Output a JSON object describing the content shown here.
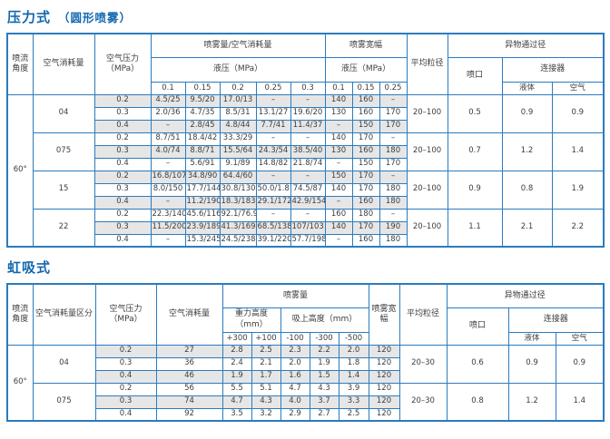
{
  "table1": {
    "title": "压力式",
    "subtitle": "（圆形喷雾）",
    "headers": {
      "spray_angle": "喷流角度",
      "air_consumption": "空气消耗量",
      "air_pressure": "空气压力（MPa）",
      "spray_air": "喷雾量/空气消耗量",
      "hyd_pressure": "液压（MPa）",
      "spray_air_cols": [
        "0.1",
        "0.15",
        "0.2",
        "0.25",
        "0.3"
      ],
      "spray_width": "喷雾宽幅",
      "spray_width_cols": [
        "0.1",
        "0.15",
        "0.25"
      ],
      "avg_particle": "平均粒径",
      "foreign_pass": "异物通过径",
      "nozzle": "喷口",
      "connector": "连接器",
      "liquid": "液体",
      "air": "空气"
    },
    "angle": "60°",
    "groups": [
      {
        "size": "04",
        "avg_particle": "20–100",
        "nozzle": "0.5",
        "liquid": "0.9",
        "air": "0.9",
        "rows": [
          {
            "pressure": "0.2",
            "spray_air": [
              "4.5/25",
              "9.5/20",
              "17.0/13",
              "–",
              "–"
            ],
            "width": [
              "140",
              "160",
              "–"
            ]
          },
          {
            "pressure": "0.3",
            "spray_air": [
              "2.0/36",
              "4.7/35",
              "8.5/31",
              "13.1/27",
              "19.6/20"
            ],
            "width": [
              "130",
              "160",
              "170"
            ]
          },
          {
            "pressure": "0.4",
            "spray_air": [
              "–",
              "2.8/45",
              "4.8/44",
              "7.7/41",
              "11.4/37"
            ],
            "width": [
              "–",
              "150",
              "170"
            ]
          }
        ]
      },
      {
        "size": "075",
        "avg_particle": "20–100",
        "nozzle": "0.7",
        "liquid": "1.2",
        "air": "1.4",
        "rows": [
          {
            "pressure": "0.2",
            "spray_air": [
              "8.7/51",
              "18.4/42",
              "33.3/29",
              "–",
              "–"
            ],
            "width": [
              "140",
              "170",
              "–"
            ]
          },
          {
            "pressure": "0.3",
            "spray_air": [
              "4.0/74",
              "8.8/71",
              "15.5/64",
              "24.3/54",
              "38.5/40"
            ],
            "width": [
              "130",
              "160",
              "180"
            ]
          },
          {
            "pressure": "0.4",
            "spray_air": [
              "–",
              "5.6/91",
              "9.1/89",
              "14.8/82",
              "21.8/74"
            ],
            "width": [
              "–",
              "150",
              "170"
            ]
          }
        ]
      },
      {
        "size": "15",
        "avg_particle": "20–100",
        "nozzle": "0.9",
        "liquid": "0.8",
        "air": "1.9",
        "rows": [
          {
            "pressure": "0.2",
            "spray_air": [
              "16.8/107",
              "34.8/90",
              "64.4/60",
              "–",
              "–"
            ],
            "width": [
              "150",
              "170",
              "–"
            ]
          },
          {
            "pressure": "0.3",
            "spray_air": [
              "8.0/150",
              "17.7/144",
              "30.8/130",
              "50.0/1.8",
              "74.5/87"
            ],
            "width": [
              "140",
              "170",
              "180"
            ]
          },
          {
            "pressure": "0.4",
            "spray_air": [
              "–",
              "11.2/190",
              "18.3/183",
              "29.1/172",
              "42.9/154"
            ],
            "width": [
              "–",
              "160",
              "180"
            ]
          }
        ]
      },
      {
        "size": "22",
        "avg_particle": "20–100",
        "nozzle": "1.1",
        "liquid": "2.1",
        "air": "2.2",
        "rows": [
          {
            "pressure": "0.2",
            "spray_air": [
              "22.3/140",
              "45.6/116",
              "92.1/76.9",
              "–",
              "–"
            ],
            "width": [
              "160",
              "180",
              "–"
            ]
          },
          {
            "pressure": "0.3",
            "spray_air": [
              "11.5/200",
              "23.9/189",
              "41.3/169",
              "68.5/138",
              "107/103"
            ],
            "width": [
              "140",
              "170",
              "190"
            ]
          },
          {
            "pressure": "0.4",
            "spray_air": [
              "–",
              "15.3/245",
              "24.5/238",
              "39.1/220",
              "57.7/198"
            ],
            "width": [
              "–",
              "160",
              "180"
            ]
          }
        ]
      }
    ]
  },
  "table2": {
    "title": "虹吸式",
    "headers": {
      "spray_angle": "喷流角度",
      "air_class": "空气消耗量区分",
      "air_pressure": "空气压力（MPa）",
      "air_consumption": "空气消耗量",
      "spray_volume": "喷雾量",
      "gravity_height": "重力高度（mm）",
      "suction_height": "吸上高度（mm）",
      "height_cols": [
        "+300",
        "+100",
        "-100",
        "-300",
        "-500"
      ],
      "spray_width": "喷雾宽幅",
      "avg_particle": "平均粒径",
      "foreign_pass": "异物通过径",
      "nozzle": "喷口",
      "connector": "连接器",
      "liquid": "液体",
      "air": "空气"
    },
    "angle": "60°",
    "groups": [
      {
        "size": "04",
        "avg_particle": "20–30",
        "nozzle": "0.6",
        "liquid": "0.9",
        "air": "0.9",
        "rows": [
          {
            "pressure": "0.2",
            "consumption": "27",
            "values": [
              "2.8",
              "2.5",
              "2.3",
              "2.2",
              "2.0"
            ],
            "width": "120"
          },
          {
            "pressure": "0.3",
            "consumption": "36",
            "values": [
              "2.4",
              "2.1",
              "2.0",
              "1.9",
              "1.8"
            ],
            "width": "120"
          },
          {
            "pressure": "0.4",
            "consumption": "46",
            "values": [
              "1.9",
              "1.7",
              "1.6",
              "1.5",
              "1.4"
            ],
            "width": "120"
          }
        ]
      },
      {
        "size": "075",
        "avg_particle": "20–30",
        "nozzle": "0.8",
        "liquid": "1.2",
        "air": "1.4",
        "rows": [
          {
            "pressure": "0.2",
            "consumption": "56",
            "values": [
              "5.5",
              "5.1",
              "4.7",
              "4.3",
              "3.9"
            ],
            "width": "120"
          },
          {
            "pressure": "0.3",
            "consumption": "74",
            "values": [
              "4.7",
              "4.3",
              "4.0",
              "3.7",
              "3.3"
            ],
            "width": "120"
          },
          {
            "pressure": "0.4",
            "consumption": "92",
            "values": [
              "3.5",
              "3.2",
              "2.9",
              "2.7",
              "2.5"
            ],
            "width": "120"
          }
        ]
      }
    ]
  }
}
